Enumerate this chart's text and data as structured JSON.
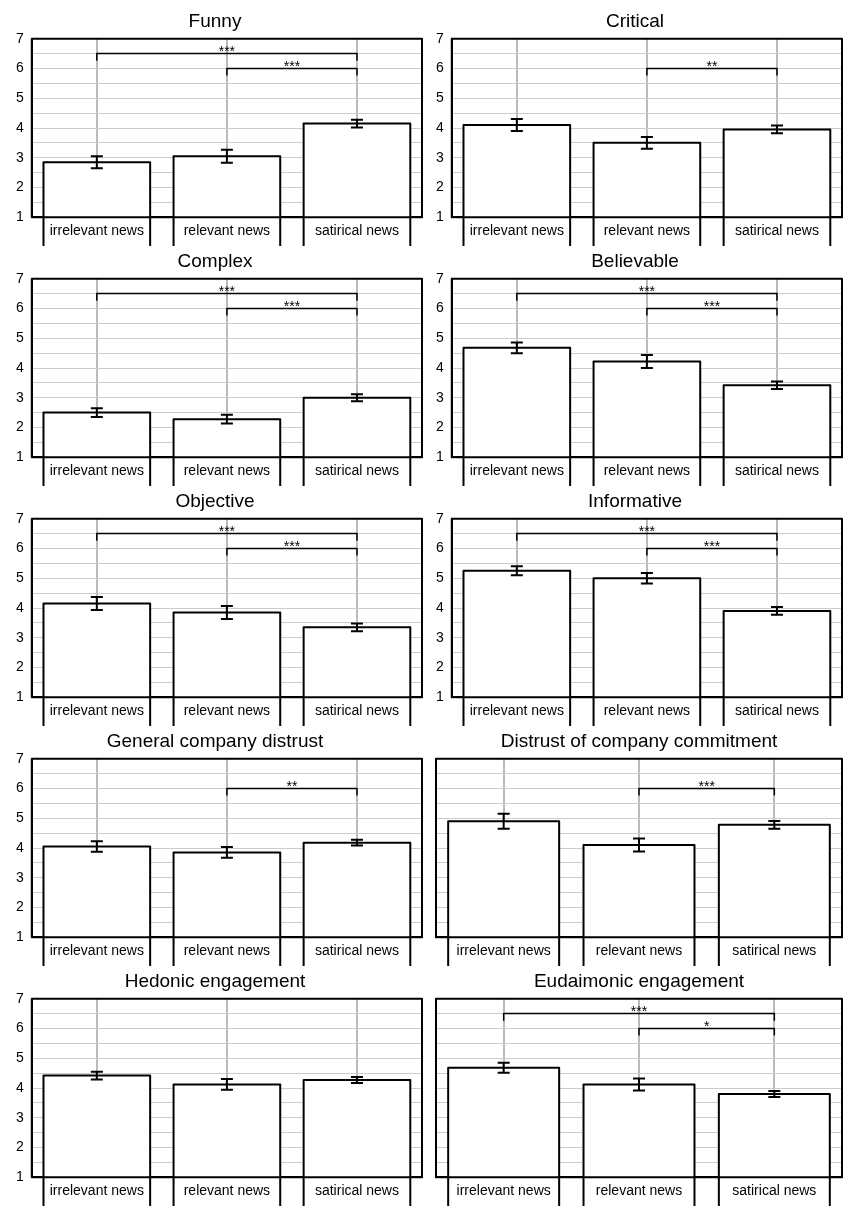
{
  "chart_data": [
    {
      "type": "bar",
      "title": "Funny",
      "categories": [
        "irrelevant news",
        "relevant news",
        "satirical news"
      ],
      "values": [
        2.85,
        3.05,
        4.15
      ],
      "errors": [
        0.2,
        0.22,
        0.13
      ],
      "color": "#ffffff",
      "ylim": [
        1,
        7
      ],
      "yticks": [
        1,
        {
          "value": 1.5,
          "label": null
        },
        2,
        {
          "value": 2.5,
          "label": null
        },
        3,
        {
          "value": 3.5,
          "label": null
        },
        4,
        {
          "value": 4.5,
          "label": null
        },
        5,
        {
          "value": 5.5,
          "label": null
        },
        6,
        {
          "value": 6.5,
          "label": null
        },
        7
      ],
      "grid": true,
      "annotations": [
        "***",
        "***"
      ]
    },
    {
      "type": "bar",
      "title": "Critical",
      "categories": [
        "irrelevant news",
        "relevant news",
        "satirical news"
      ],
      "values": [
        4.1,
        3.5,
        3.95
      ],
      "errors": [
        0.2,
        0.2,
        0.13
      ],
      "color": "#ffffff",
      "ylim": [
        1,
        7
      ],
      "yticks": [
        1,
        {
          "value": 1.5,
          "label": null
        },
        2,
        {
          "value": 2.5,
          "label": null
        },
        3,
        {
          "value": 3.5,
          "label": null
        },
        4,
        {
          "value": 4.5,
          "label": null
        },
        5,
        {
          "value": 5.5,
          "label": null
        },
        6,
        {
          "value": 6.5,
          "label": null
        },
        7
      ],
      "grid": true,
      "annotations": [
        "**"
      ]
    },
    {
      "type": "bar",
      "title": "Complex",
      "categories": [
        "irrelevant news",
        "relevant news",
        "satirical news"
      ],
      "values": [
        2.5,
        2.28,
        3.0
      ],
      "errors": [
        0.15,
        0.15,
        0.12
      ],
      "color": "#ffffff",
      "ylim": [
        1,
        7
      ],
      "yticks": [
        1,
        {
          "value": 1.5,
          "label": null
        },
        2,
        {
          "value": 2.5,
          "label": null
        },
        3,
        {
          "value": 3.5,
          "label": null
        },
        4,
        {
          "value": 4.5,
          "label": null
        },
        5,
        {
          "value": 5.5,
          "label": null
        },
        6,
        {
          "value": 6.5,
          "label": null
        },
        7
      ],
      "grid": true,
      "annotations": [
        "***",
        "***"
      ]
    },
    {
      "type": "bar",
      "title": "Believable",
      "categories": [
        "irrelevant news",
        "relevant news",
        "satirical news"
      ],
      "values": [
        4.68,
        4.22,
        3.42
      ],
      "errors": [
        0.18,
        0.22,
        0.13
      ],
      "color": "#ffffff",
      "ylim": [
        1,
        7
      ],
      "yticks": [
        1,
        {
          "value": 1.5,
          "label": null
        },
        2,
        {
          "value": 2.5,
          "label": null
        },
        3,
        {
          "value": 3.5,
          "label": null
        },
        4,
        {
          "value": 4.5,
          "label": null
        },
        5,
        {
          "value": 5.5,
          "label": null
        },
        6,
        {
          "value": 6.5,
          "label": null
        },
        7
      ],
      "grid": true,
      "annotations": [
        "***",
        "***"
      ]
    },
    {
      "type": "bar",
      "title": "Objective",
      "categories": [
        "irrelevant news",
        "relevant news",
        "satirical news"
      ],
      "values": [
        4.15,
        3.85,
        3.35
      ],
      "errors": [
        0.22,
        0.22,
        0.13
      ],
      "color": "#ffffff",
      "ylim": [
        1,
        7
      ],
      "yticks": [
        1,
        {
          "value": 1.5,
          "label": null
        },
        2,
        {
          "value": 2.5,
          "label": null
        },
        3,
        {
          "value": 3.5,
          "label": null
        },
        4,
        {
          "value": 4.5,
          "label": null
        },
        5,
        {
          "value": 5.5,
          "label": null
        },
        6,
        {
          "value": 6.5,
          "label": null
        },
        7
      ],
      "grid": true,
      "annotations": [
        "***",
        "***"
      ]
    },
    {
      "type": "bar",
      "title": "Informative",
      "categories": [
        "irrelevant news",
        "relevant news",
        "satirical news"
      ],
      "values": [
        5.25,
        5.0,
        3.9
      ],
      "errors": [
        0.15,
        0.18,
        0.13
      ],
      "color": "#ffffff",
      "ylim": [
        1,
        7
      ],
      "yticks": [
        1,
        {
          "value": 1.5,
          "label": null
        },
        2,
        {
          "value": 2.5,
          "label": null
        },
        3,
        {
          "value": 3.5,
          "label": null
        },
        4,
        {
          "value": 4.5,
          "label": null
        },
        5,
        {
          "value": 5.5,
          "label": null
        },
        6,
        {
          "value": 6.5,
          "label": null
        },
        7
      ],
      "grid": true,
      "annotations": [
        "***",
        "***"
      ]
    },
    {
      "type": "bar",
      "title": "General company distrust",
      "categories": [
        "irrelevant news",
        "relevant news",
        "satirical news"
      ],
      "values": [
        4.05,
        3.85,
        4.18
      ],
      "errors": [
        0.18,
        0.18,
        0.1
      ],
      "color": "#ffffff",
      "ylim": [
        1,
        7
      ],
      "yticks": [
        1,
        {
          "value": 1.5,
          "label": null
        },
        2,
        {
          "value": 2.5,
          "label": null
        },
        3,
        {
          "value": 3.5,
          "label": null
        },
        4,
        {
          "value": 4.5,
          "label": null
        },
        5,
        {
          "value": 5.5,
          "label": null
        },
        6,
        {
          "value": 6.5,
          "label": null
        },
        7
      ],
      "grid": true,
      "annotations": [
        "**"
      ]
    },
    {
      "type": "bar",
      "title": "Distrust of company commitment",
      "categories": [
        "irrelevant news",
        "relevant news",
        "satirical news"
      ],
      "values": [
        4.9,
        4.1,
        4.78
      ],
      "errors": [
        0.25,
        0.22,
        0.13
      ],
      "color": "#ffffff",
      "ylim": [
        1,
        7
      ],
      "yticks": [
        1,
        {
          "value": 1.5,
          "label": null
        },
        2,
        {
          "value": 2.5,
          "label": null
        },
        3,
        {
          "value": 3.5,
          "label": null
        },
        4,
        {
          "value": 4.5,
          "label": null
        },
        5,
        {
          "value": 5.5,
          "label": null
        },
        6,
        {
          "value": 6.5,
          "label": null
        },
        7
      ],
      "grid": true,
      "tick_labels": "x",
      "annotations": [
        "***"
      ]
    },
    {
      "type": "bar",
      "title": "Hedonic engagement",
      "categories": [
        "irrelevant news",
        "relevant news",
        "satirical news"
      ],
      "values": [
        4.42,
        4.12,
        4.27
      ],
      "errors": [
        0.13,
        0.18,
        0.1
      ],
      "color": "#ffffff",
      "ylim": [
        1,
        7
      ],
      "yticks": [
        1,
        {
          "value": 1.5,
          "label": null
        },
        2,
        {
          "value": 2.5,
          "label": null
        },
        3,
        {
          "value": 3.5,
          "label": null
        },
        4,
        {
          "value": 4.5,
          "label": null
        },
        5,
        {
          "value": 5.5,
          "label": null
        },
        6,
        {
          "value": 6.5,
          "label": null
        },
        7
      ],
      "grid": true
    },
    {
      "type": "bar",
      "title": "Eudaimonic engagement",
      "categories": [
        "irrelevant news",
        "relevant news",
        "satirical news"
      ],
      "values": [
        4.68,
        4.12,
        3.8
      ],
      "errors": [
        0.17,
        0.2,
        0.1
      ],
      "color": "#ffffff",
      "ylim": [
        1,
        7
      ],
      "yticks": [
        1,
        {
          "value": 1.5,
          "label": null
        },
        2,
        {
          "value": 2.5,
          "label": null
        },
        3,
        {
          "value": 3.5,
          "label": null
        },
        4,
        {
          "value": 4.5,
          "label": null
        },
        5,
        {
          "value": 5.5,
          "label": null
        },
        6,
        {
          "value": 6.5,
          "label": null
        },
        7
      ],
      "grid": true,
      "tick_labels": "x",
      "annotations": [
        "***",
        "*"
      ]
    }
  ]
}
